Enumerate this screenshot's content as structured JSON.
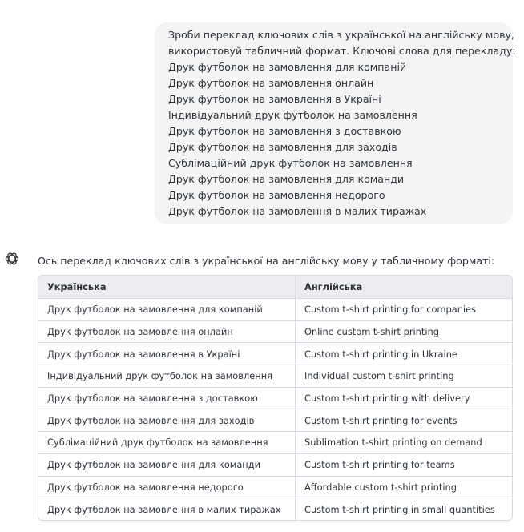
{
  "user_message": {
    "lines": [
      "Зроби переклад ключових слів з української на англійську мову,",
      "використовуй табличний формат. Ключові слова для перекладу:",
      "Друк футболок на замовлення для компаній",
      "Друк футболок на замовлення онлайн",
      "Друк футболок на замовлення в Україні",
      "Індивідуальний друк футболок на замовлення",
      "Друк футболок на замовлення з доставкою",
      "Друк футболок на замовлення для заходів",
      "Сублімаційний друк футболок на замовлення",
      "Друк футболок на замовлення для команди",
      "Друк футболок на замовлення недорого",
      "Друк футболок на замовлення в малих тиражах"
    ]
  },
  "assistant_message": {
    "intro": "Ось переклад ключових слів з української на англійську мову у табличному форматі:",
    "table": {
      "header": [
        "Українська",
        "Англійська"
      ],
      "rows": [
        [
          "Друк футболок на замовлення для компаній",
          "Custom t-shirt printing for companies"
        ],
        [
          "Друк футболок на замовлення онлайн",
          "Online custom t-shirt printing"
        ],
        [
          "Друк футболок на замовлення в Україні",
          "Custom t-shirt printing in Ukraine"
        ],
        [
          "Індивідуальний друк футболок на замовлення",
          "Individual custom t-shirt printing"
        ],
        [
          "Друк футболок на замовлення з доставкою",
          "Custom t-shirt printing with delivery"
        ],
        [
          "Друк футболок на замовлення для заходів",
          "Custom t-shirt printing for events"
        ],
        [
          "Сублімаційний друк футболок на замовлення",
          "Sublimation t-shirt printing on demand"
        ],
        [
          "Друк футболок на замовлення для команди",
          "Custom t-shirt printing for teams"
        ],
        [
          "Друк футболок на замовлення недорого",
          "Affordable custom t-shirt printing"
        ],
        [
          "Друк футболок на замовлення в малих тиражах",
          "Custom t-shirt printing in small quantities"
        ]
      ]
    }
  }
}
